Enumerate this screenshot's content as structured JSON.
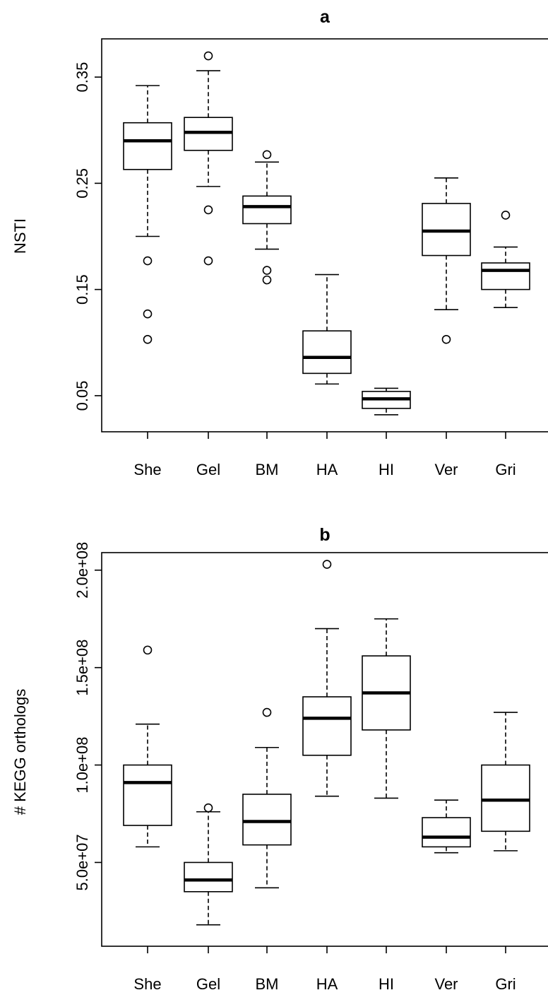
{
  "chart_data": [
    {
      "type": "box",
      "title": "a",
      "xlabel": "",
      "ylabel": "NSTI",
      "categories": [
        "She",
        "Gel",
        "BM",
        "HA",
        "HI",
        "Ver",
        "Gri"
      ],
      "yticks": [
        0.05,
        0.15,
        0.25,
        0.35
      ],
      "ytick_labels": [
        "0.05",
        "0.15",
        "0.25",
        "0.35"
      ],
      "ylim": [
        0.016,
        0.386
      ],
      "boxes": [
        {
          "min": 0.2,
          "q1": 0.263,
          "median": 0.29,
          "q3": 0.307,
          "max": 0.342,
          "outliers": [
            0.177,
            0.127,
            0.103
          ]
        },
        {
          "min": 0.247,
          "q1": 0.281,
          "median": 0.298,
          "q3": 0.312,
          "max": 0.356,
          "outliers": [
            0.37,
            0.225,
            0.177
          ]
        },
        {
          "min": 0.188,
          "q1": 0.212,
          "median": 0.228,
          "q3": 0.238,
          "max": 0.27,
          "outliers": [
            0.277,
            0.168,
            0.159
          ]
        },
        {
          "min": 0.061,
          "q1": 0.071,
          "median": 0.086,
          "q3": 0.111,
          "max": 0.164,
          "outliers": []
        },
        {
          "min": 0.032,
          "q1": 0.038,
          "median": 0.047,
          "q3": 0.054,
          "max": 0.057,
          "outliers": []
        },
        {
          "min": 0.131,
          "q1": 0.182,
          "median": 0.205,
          "q3": 0.231,
          "max": 0.255,
          "outliers": [
            0.103
          ]
        },
        {
          "min": 0.133,
          "q1": 0.15,
          "median": 0.168,
          "q3": 0.175,
          "max": 0.19,
          "outliers": [
            0.22
          ]
        }
      ]
    },
    {
      "type": "box",
      "title": "b",
      "xlabel": "",
      "ylabel": "# KEGG orthologs",
      "categories": [
        "She",
        "Gel",
        "BM",
        "HA",
        "HI",
        "Ver",
        "Gri"
      ],
      "yticks": [
        50000000,
        100000000,
        150000000,
        200000000
      ],
      "ytick_labels": [
        "5.0e+07",
        "1.0e+08",
        "1.5e+08",
        "2.0e+08"
      ],
      "ylim": [
        7000000,
        209000000
      ],
      "boxes": [
        {
          "min": 58000000,
          "q1": 69000000,
          "median": 91000000,
          "q3": 100000000,
          "max": 121000000,
          "outliers": [
            159000000
          ]
        },
        {
          "min": 18000000,
          "q1": 35000000,
          "median": 41000000,
          "q3": 50000000,
          "max": 76000000,
          "outliers": [
            78000000
          ]
        },
        {
          "min": 37000000,
          "q1": 59000000,
          "median": 71000000,
          "q3": 85000000,
          "max": 109000000,
          "outliers": [
            127000000
          ]
        },
        {
          "min": 84000000,
          "q1": 105000000,
          "median": 124000000,
          "q3": 135000000,
          "max": 170000000,
          "outliers": [
            203000000
          ]
        },
        {
          "min": 83000000,
          "q1": 118000000,
          "median": 137000000,
          "q3": 156000000,
          "max": 175000000,
          "outliers": []
        },
        {
          "min": 55000000,
          "q1": 58000000,
          "median": 63000000,
          "q3": 73000000,
          "max": 82000000,
          "outliers": []
        },
        {
          "min": 56000000,
          "q1": 66000000,
          "median": 82000000,
          "q3": 100000000,
          "max": 127000000,
          "outliers": []
        }
      ]
    }
  ]
}
